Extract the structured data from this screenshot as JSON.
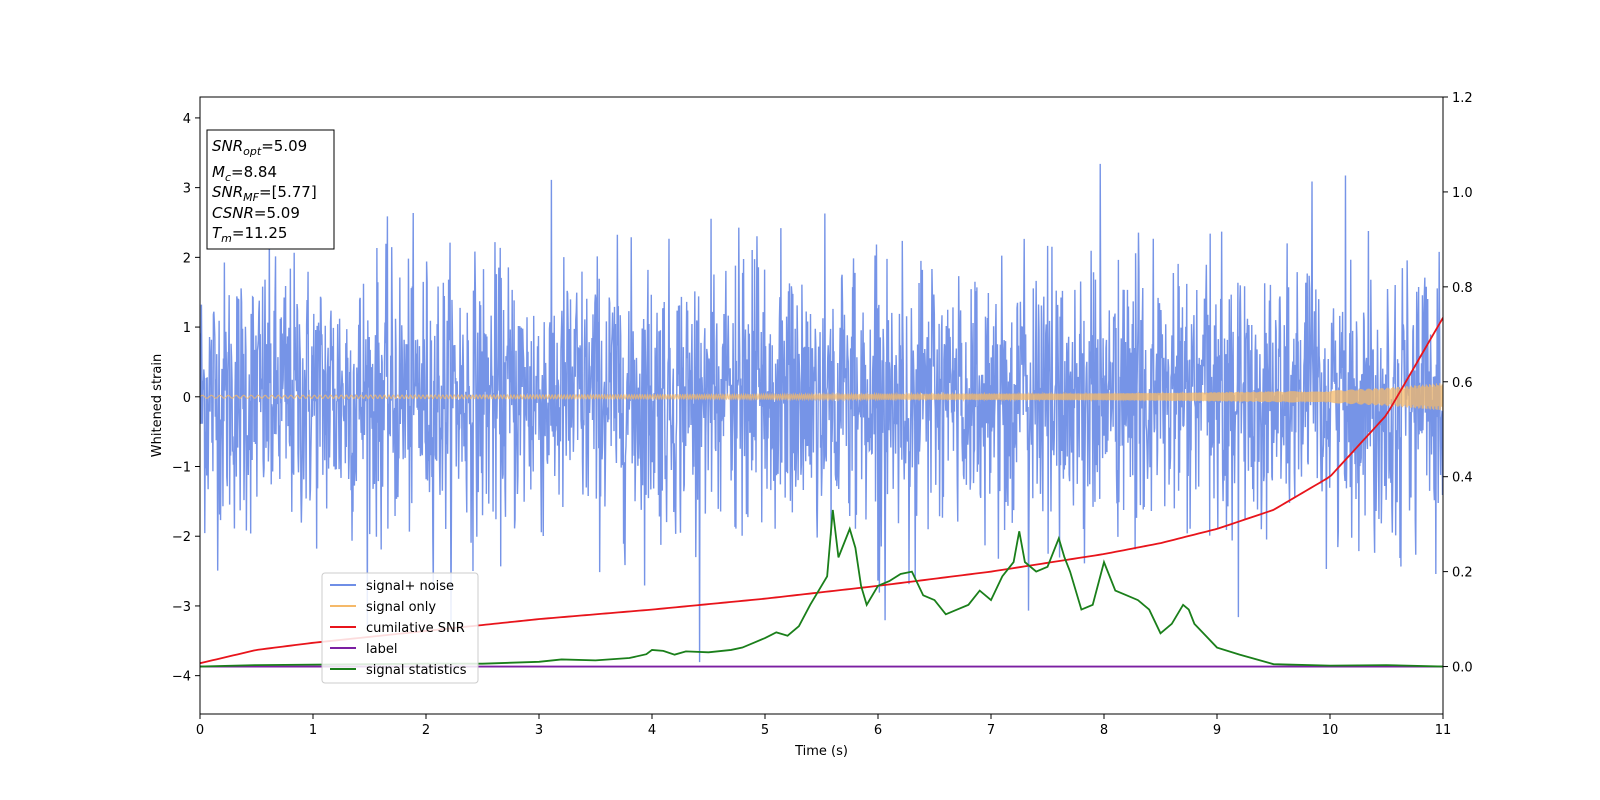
{
  "chart_data": {
    "type": "line",
    "xlabel": "Time (s)",
    "ylabel": "Whitened strain",
    "xlim": [
      0,
      11
    ],
    "ylim_left": [
      -4.55,
      4.3
    ],
    "ylim_right": [
      -0.1,
      1.2
    ],
    "x_ticks": [
      "0",
      "1",
      "2",
      "3",
      "4",
      "5",
      "6",
      "7",
      "8",
      "9",
      "10",
      "11"
    ],
    "y_ticks_left": [
      "−4",
      "−3",
      "−2",
      "−1",
      "0",
      "1",
      "2",
      "3",
      "4"
    ],
    "y_ticks_right": [
      "0.0",
      "0.2",
      "0.4",
      "0.6",
      "0.8",
      "1.0",
      "1.2"
    ],
    "legend_position": "lower-left",
    "grid": false,
    "info_box": {
      "lines": [
        {
          "main": "SNR",
          "sub": "opt",
          "rest": "=5.09"
        },
        {
          "main": "M",
          "sub": "c",
          "rest": "=8.84"
        },
        {
          "main": "SNR",
          "sub": "MF",
          "rest": "=[5.77]"
        },
        {
          "main": "CSNR",
          "sub": "",
          "rest": "=5.09"
        },
        {
          "main": "T",
          "sub": "m",
          "rest": "=11.25"
        }
      ]
    },
    "series": [
      {
        "name": "signal+ noise",
        "color": "#6f8ee6",
        "axis": "left",
        "description_stats": {
          "std": 1.0
        }
      },
      {
        "name": "signal only",
        "color": "#f5b969",
        "axis": "left",
        "amplitude_envelope": {
          "x": [
            0,
            2,
            4,
            6,
            8,
            9,
            10,
            10.5,
            11
          ],
          "y": [
            0.02,
            0.025,
            0.03,
            0.04,
            0.05,
            0.065,
            0.09,
            0.13,
            0.2
          ]
        }
      },
      {
        "name": "cumilative SNR",
        "color": "#e8141b",
        "axis": "right",
        "x": [
          0,
          0.5,
          1,
          2,
          3,
          4,
          5,
          6,
          7,
          8,
          8.5,
          9,
          9.5,
          10,
          10.5,
          11
        ],
        "y": [
          0.007,
          0.035,
          0.05,
          0.075,
          0.1,
          0.12,
          0.143,
          0.17,
          0.2,
          0.237,
          0.26,
          0.29,
          0.33,
          0.4,
          0.53,
          0.735
        ]
      },
      {
        "name": "label",
        "color": "#7b1fa2",
        "axis": "right",
        "x": [
          0,
          11
        ],
        "y": [
          0,
          0
        ]
      },
      {
        "name": "signal statistics",
        "color": "#1a7f1a",
        "axis": "right",
        "x": [
          0,
          0.5,
          1,
          1.5,
          2,
          2.5,
          3,
          3.2,
          3.5,
          3.8,
          3.95,
          4.0,
          4.1,
          4.2,
          4.3,
          4.5,
          4.7,
          4.8,
          4.9,
          5.0,
          5.1,
          5.2,
          5.3,
          5.4,
          5.5,
          5.55,
          5.6,
          5.65,
          5.7,
          5.75,
          5.8,
          5.85,
          5.9,
          6.0,
          6.1,
          6.2,
          6.3,
          6.4,
          6.5,
          6.6,
          6.7,
          6.8,
          6.9,
          7.0,
          7.1,
          7.2,
          7.25,
          7.3,
          7.4,
          7.5,
          7.6,
          7.65,
          7.7,
          7.8,
          7.9,
          8.0,
          8.1,
          8.2,
          8.3,
          8.4,
          8.5,
          8.6,
          8.7,
          8.75,
          8.8,
          9.0,
          9.2,
          9.5,
          10,
          10.5,
          11
        ],
        "y": [
          0.0,
          0.003,
          0.004,
          0.005,
          0.006,
          0.006,
          0.01,
          0.015,
          0.013,
          0.018,
          0.026,
          0.035,
          0.033,
          0.025,
          0.032,
          0.03,
          0.035,
          0.04,
          0.05,
          0.06,
          0.072,
          0.065,
          0.085,
          0.13,
          0.17,
          0.19,
          0.33,
          0.23,
          0.26,
          0.29,
          0.25,
          0.17,
          0.13,
          0.17,
          0.18,
          0.195,
          0.2,
          0.15,
          0.14,
          0.11,
          0.12,
          0.13,
          0.16,
          0.14,
          0.19,
          0.22,
          0.285,
          0.22,
          0.2,
          0.21,
          0.27,
          0.23,
          0.2,
          0.12,
          0.13,
          0.22,
          0.16,
          0.15,
          0.14,
          0.12,
          0.07,
          0.09,
          0.13,
          0.12,
          0.09,
          0.04,
          0.025,
          0.005,
          0.002,
          0.003,
          0.0
        ]
      }
    ]
  }
}
